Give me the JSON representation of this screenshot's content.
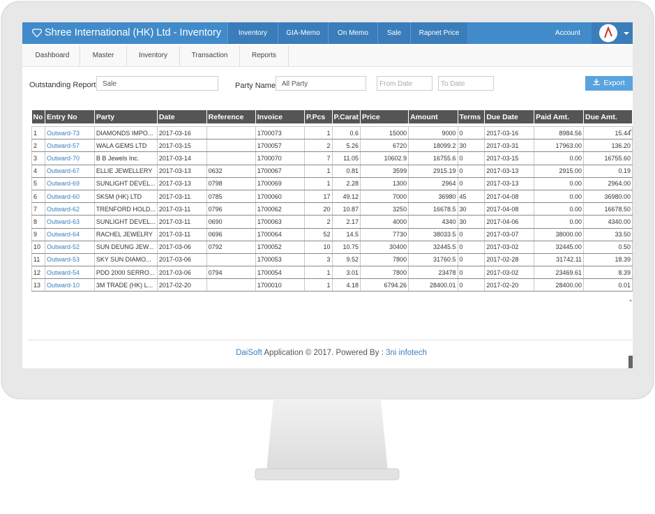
{
  "header": {
    "brand": "Shree International (HK) Ltd - Inventory",
    "nav": [
      "Inventory",
      "GIA-Memo",
      "On Memo",
      "Sale",
      "Rapnet Price"
    ],
    "account": "Account"
  },
  "tabs": [
    "Dashboard",
    "Master",
    "Inventory",
    "Transaction",
    "Reports"
  ],
  "filters": {
    "report_label": "Outstanding Report",
    "report_value": "Sale",
    "party_label": "Party Name",
    "party_value": "All Party",
    "from_placeholder": "From Date",
    "to_placeholder": "To Date",
    "export": "Export"
  },
  "table": {
    "columns": [
      "No",
      "Entry No",
      "Party",
      "Date",
      "Reference",
      "Invoice",
      "P.Pcs",
      "P.Carat",
      "Price",
      "Amount",
      "Terms",
      "Due Date",
      "Paid Amt.",
      "Due Amt."
    ],
    "rows": [
      [
        "1",
        "Outward-73",
        "DIAMONDS IMPO...",
        "2017-03-16",
        null,
        "1700073",
        "1",
        "0.6",
        "15000",
        "9000",
        "0",
        "2017-03-16",
        "8984.56",
        "15.44"
      ],
      [
        "2",
        "Outward-57",
        "WALA GEMS LTD",
        "2017-03-15",
        null,
        "1700057",
        "2",
        "5.26",
        "6720",
        "18099.2",
        "30",
        "2017-03-31",
        "17963.00",
        "136.20"
      ],
      [
        "3",
        "Outward-70",
        "B B Jewels Inc.",
        "2017-03-14",
        null,
        "1700070",
        "7",
        "11.05",
        "10602.9",
        "16755.6",
        "0",
        "2017-03-15",
        "0.00",
        "16755.60"
      ],
      [
        "4",
        "Outward-67",
        "ELLIE JEWELLERY",
        "2017-03-13",
        "0632",
        "1700067",
        "1",
        "0.81",
        "3599",
        "2915.19",
        "0",
        "2017-03-13",
        "2915.00",
        "0.19"
      ],
      [
        "5",
        "Outward-69",
        "SUNLIGHT DEVEL...",
        "2017-03-13",
        "0798",
        "1700069",
        "1",
        "2.28",
        "1300",
        "2964",
        "0",
        "2017-03-13",
        "0.00",
        "2964.00"
      ],
      [
        "6",
        "Outward-60",
        "SKSM (HK) LTD",
        "2017-03-11",
        "0785",
        "1700060",
        "17",
        "49.12",
        "7000",
        "36980",
        "45",
        "2017-04-08",
        "0.00",
        "36980.00"
      ],
      [
        "7",
        "Outward-62",
        "TRENFORD HOLD...",
        "2017-03-11",
        "0796",
        "1700062",
        "20",
        "10.87",
        "3250",
        "16678.5",
        "30",
        "2017-04-08",
        "0.00",
        "16678.50"
      ],
      [
        "8",
        "Outward-63",
        "SUNLIGHT DEVEL...",
        "2017-03-11",
        "0690",
        "1700063",
        "2",
        "2.17",
        "4000",
        "4340",
        "30",
        "2017-04-06",
        "0.00",
        "4340.00"
      ],
      [
        "9",
        "Outward-64",
        "RACHEL JEWELRY",
        "2017-03-11",
        "0696",
        "1700064",
        "52",
        "14.5",
        "7730",
        "38033.5",
        "0",
        "2017-03-07",
        "38000.00",
        "33.50"
      ],
      [
        "10",
        "Outward-52",
        "SUN DEUNG JEW...",
        "2017-03-06",
        "0792",
        "1700052",
        "10",
        "10.75",
        "30400",
        "32445.5",
        "0",
        "2017-03-02",
        "32445.00",
        "0.50"
      ],
      [
        "11",
        "Outward-53",
        "SKY SUN DIAMO...",
        "2017-03-06",
        null,
        "1700053",
        "3",
        "9.52",
        "7800",
        "31760.5",
        "0",
        "2017-02-28",
        "31742.11",
        "18.39"
      ],
      [
        "12",
        "Outward-54",
        "PDD 2000 SERRO...",
        "2017-03-06",
        "0794",
        "1700054",
        "1",
        "3.01",
        "7800",
        "23478",
        "0",
        "2017-03-02",
        "23469.61",
        "8.39"
      ],
      [
        "13",
        "Outward-10",
        "3M TRADE (HK) L...",
        "2017-02-20",
        null,
        "1700010",
        "1",
        "4.18",
        "6794.26",
        "28400.01",
        "0",
        "2017-02-20",
        "28400.00",
        "0.01"
      ]
    ]
  },
  "footer": {
    "brand": "DaiSoft",
    "text": "Application © 2017. Powered By :",
    "company": "3ni infotech"
  }
}
